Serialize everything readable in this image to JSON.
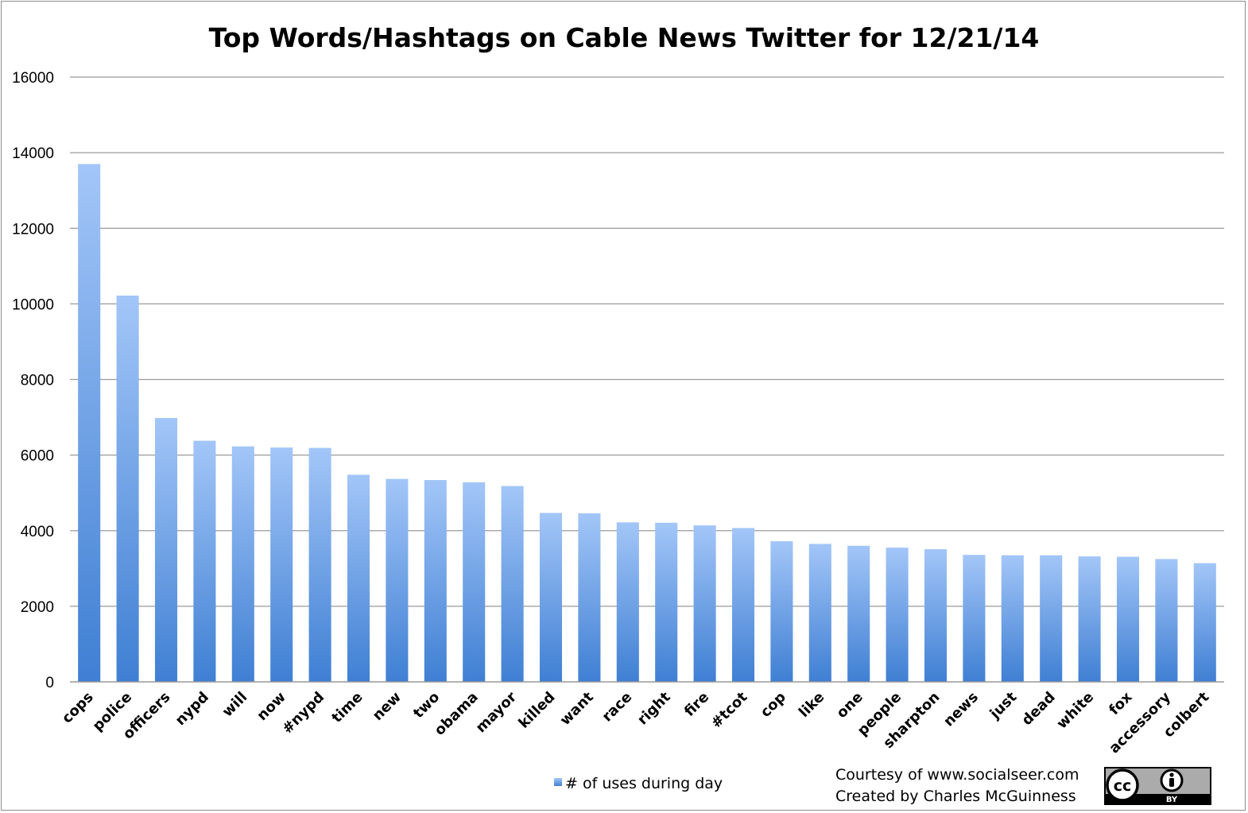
{
  "chart_data": {
    "type": "bar",
    "title": "Top Words/Hashtags on Cable News Twitter for 12/21/14",
    "xlabel": "",
    "ylabel": "",
    "ylim": [
      0,
      16000
    ],
    "yticks": [
      0,
      2000,
      4000,
      6000,
      8000,
      10000,
      12000,
      14000,
      16000
    ],
    "grid": true,
    "legend_position": "bottom-center",
    "categories": [
      "cops",
      "police",
      "officers",
      "nypd",
      "will",
      "now",
      "#nypd",
      "time",
      "new",
      "two",
      "obama",
      "mayor",
      "killed",
      "want",
      "race",
      "right",
      "fire",
      "#tcot",
      "cop",
      "like",
      "one",
      "people",
      "sharpton",
      "news",
      "just",
      "dead",
      "white",
      "fox",
      "accessory",
      "colbert"
    ],
    "series": [
      {
        "name": "# of uses during day",
        "color": "#5b96e0",
        "values": [
          13700,
          10220,
          6980,
          6380,
          6230,
          6200,
          6190,
          5480,
          5370,
          5340,
          5280,
          5180,
          4470,
          4460,
          4220,
          4210,
          4140,
          4070,
          3720,
          3650,
          3600,
          3550,
          3510,
          3360,
          3350,
          3350,
          3320,
          3310,
          3250,
          3140
        ]
      }
    ]
  },
  "credits": {
    "line1": "Courtesy of www.socialseer.com",
    "line2": "Created by Charles McGuinness"
  },
  "license_badge": {
    "icon": "creative-commons-by-icon",
    "cc_text": "cc",
    "by_text": "BY"
  }
}
